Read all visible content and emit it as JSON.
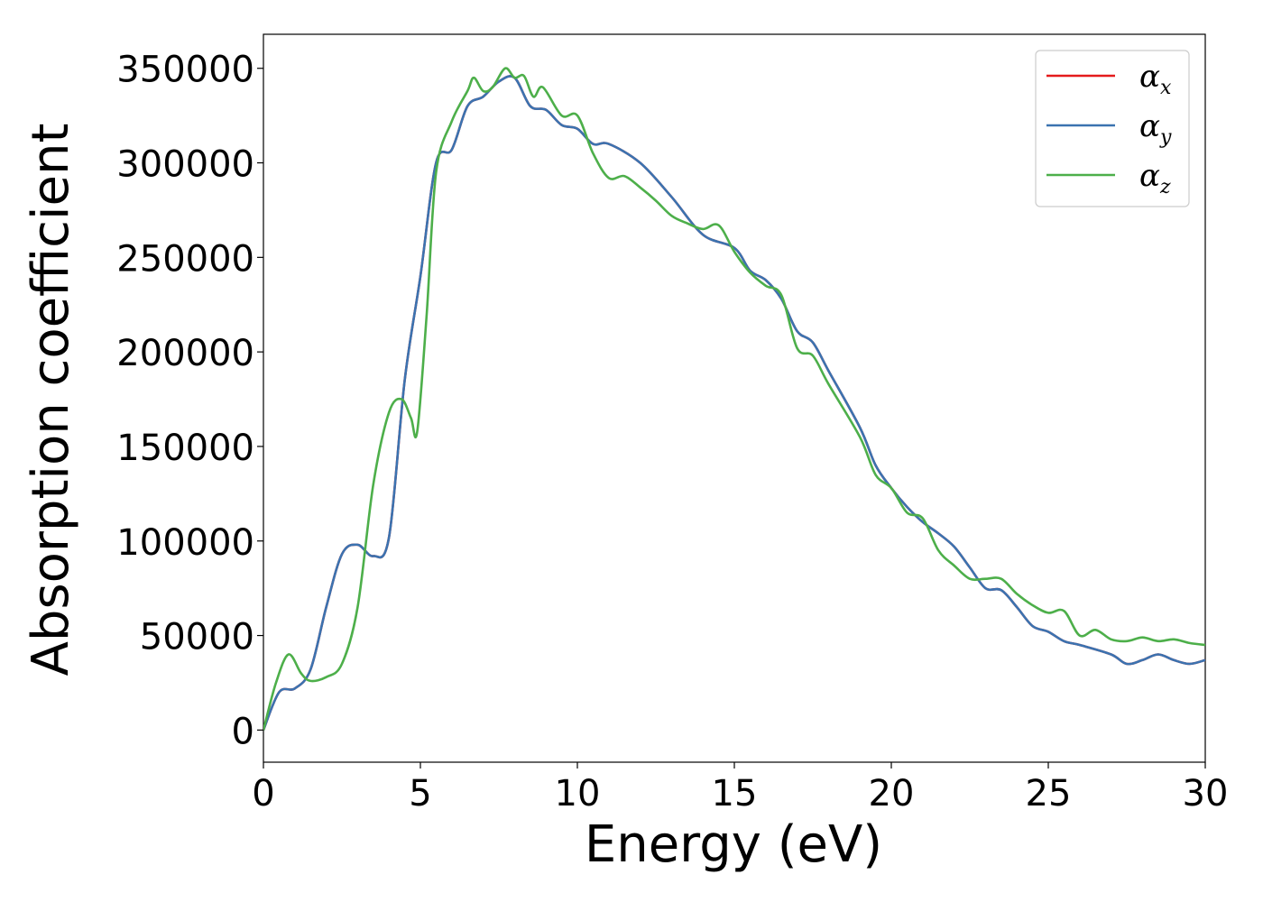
{
  "chart_data": {
    "type": "line",
    "xlabel": "Energy (eV)",
    "ylabel": "Absorption coefficient",
    "xlim": [
      0,
      30
    ],
    "ylim": [
      -17000,
      368000
    ],
    "xticks": [
      0,
      5,
      10,
      15,
      20,
      25,
      30
    ],
    "yticks": [
      0,
      50000,
      100000,
      150000,
      200000,
      250000,
      300000,
      350000
    ],
    "grid": false,
    "legend_position": "top-right",
    "series": [
      {
        "name": "α_x",
        "legend_symbol": "α",
        "legend_sub": "x",
        "color": "#e41a1c",
        "points": [
          [
            0,
            0
          ],
          [
            0.5,
            20000
          ],
          [
            1,
            22000
          ],
          [
            1.5,
            32000
          ],
          [
            2,
            65000
          ],
          [
            2.5,
            93000
          ],
          [
            3,
            98000
          ],
          [
            3.5,
            92000
          ],
          [
            4,
            102000
          ],
          [
            4.5,
            185000
          ],
          [
            5,
            240000
          ],
          [
            5.5,
            300000
          ],
          [
            6,
            307000
          ],
          [
            6.5,
            330000
          ],
          [
            7,
            335000
          ],
          [
            7.5,
            343000
          ],
          [
            8,
            345000
          ],
          [
            8.5,
            330000
          ],
          [
            9,
            328000
          ],
          [
            9.5,
            320000
          ],
          [
            10,
            318000
          ],
          [
            10.5,
            310000
          ],
          [
            11,
            310000
          ],
          [
            12,
            300000
          ],
          [
            13,
            282000
          ],
          [
            14,
            262000
          ],
          [
            15,
            255000
          ],
          [
            15.5,
            243000
          ],
          [
            16,
            238000
          ],
          [
            16.5,
            228000
          ],
          [
            17,
            211000
          ],
          [
            17.5,
            205000
          ],
          [
            18,
            190000
          ],
          [
            19,
            160000
          ],
          [
            19.5,
            140000
          ],
          [
            20,
            128000
          ],
          [
            20.5,
            118000
          ],
          [
            21,
            110000
          ],
          [
            21.5,
            104000
          ],
          [
            22,
            97000
          ],
          [
            22.5,
            86000
          ],
          [
            23,
            75000
          ],
          [
            23.5,
            74000
          ],
          [
            24,
            65000
          ],
          [
            24.5,
            55000
          ],
          [
            25,
            52000
          ],
          [
            25.5,
            47000
          ],
          [
            26,
            45000
          ],
          [
            27,
            40000
          ],
          [
            27.5,
            35000
          ],
          [
            28,
            37000
          ],
          [
            28.5,
            40000
          ],
          [
            29,
            37000
          ],
          [
            29.5,
            35000
          ],
          [
            30,
            37000
          ]
        ]
      },
      {
        "name": "α_y",
        "legend_symbol": "α",
        "legend_sub": "y",
        "color": "#3b73b0",
        "points": [
          [
            0,
            0
          ],
          [
            0.5,
            20000
          ],
          [
            1,
            22000
          ],
          [
            1.5,
            32000
          ],
          [
            2,
            65000
          ],
          [
            2.5,
            93000
          ],
          [
            3,
            98000
          ],
          [
            3.5,
            92000
          ],
          [
            4,
            102000
          ],
          [
            4.5,
            185000
          ],
          [
            5,
            240000
          ],
          [
            5.5,
            300000
          ],
          [
            6,
            307000
          ],
          [
            6.5,
            330000
          ],
          [
            7,
            335000
          ],
          [
            7.5,
            343000
          ],
          [
            8,
            345000
          ],
          [
            8.5,
            330000
          ],
          [
            9,
            328000
          ],
          [
            9.5,
            320000
          ],
          [
            10,
            318000
          ],
          [
            10.5,
            310000
          ],
          [
            11,
            310000
          ],
          [
            12,
            300000
          ],
          [
            13,
            282000
          ],
          [
            14,
            262000
          ],
          [
            15,
            255000
          ],
          [
            15.5,
            243000
          ],
          [
            16,
            238000
          ],
          [
            16.5,
            228000
          ],
          [
            17,
            211000
          ],
          [
            17.5,
            205000
          ],
          [
            18,
            190000
          ],
          [
            19,
            160000
          ],
          [
            19.5,
            140000
          ],
          [
            20,
            128000
          ],
          [
            20.5,
            118000
          ],
          [
            21,
            110000
          ],
          [
            21.5,
            104000
          ],
          [
            22,
            97000
          ],
          [
            22.5,
            86000
          ],
          [
            23,
            75000
          ],
          [
            23.5,
            74000
          ],
          [
            24,
            65000
          ],
          [
            24.5,
            55000
          ],
          [
            25,
            52000
          ],
          [
            25.5,
            47000
          ],
          [
            26,
            45000
          ],
          [
            27,
            40000
          ],
          [
            27.5,
            35000
          ],
          [
            28,
            37000
          ],
          [
            28.5,
            40000
          ],
          [
            29,
            37000
          ],
          [
            29.5,
            35000
          ],
          [
            30,
            37000
          ]
        ]
      },
      {
        "name": "α_z",
        "legend_symbol": "α",
        "legend_sub": "z",
        "color": "#4daf4a",
        "points": [
          [
            0,
            0
          ],
          [
            0.4,
            25000
          ],
          [
            0.8,
            40000
          ],
          [
            1.2,
            30000
          ],
          [
            1.5,
            26000
          ],
          [
            2,
            28000
          ],
          [
            2.5,
            35000
          ],
          [
            3,
            65000
          ],
          [
            3.5,
            130000
          ],
          [
            4,
            168000
          ],
          [
            4.4,
            175000
          ],
          [
            4.7,
            165000
          ],
          [
            4.9,
            158000
          ],
          [
            5.2,
            220000
          ],
          [
            5.5,
            295000
          ],
          [
            6,
            322000
          ],
          [
            6.5,
            338000
          ],
          [
            6.7,
            345000
          ],
          [
            7,
            338000
          ],
          [
            7.3,
            340000
          ],
          [
            7.7,
            350000
          ],
          [
            8,
            345000
          ],
          [
            8.3,
            346000
          ],
          [
            8.6,
            335000
          ],
          [
            8.9,
            340000
          ],
          [
            9.5,
            325000
          ],
          [
            10,
            325000
          ],
          [
            10.5,
            305000
          ],
          [
            11,
            292000
          ],
          [
            11.5,
            293000
          ],
          [
            12,
            287000
          ],
          [
            12.5,
            280000
          ],
          [
            13,
            272000
          ],
          [
            13.5,
            268000
          ],
          [
            14,
            265000
          ],
          [
            14.5,
            267000
          ],
          [
            15,
            253000
          ],
          [
            15.5,
            242000
          ],
          [
            16,
            235000
          ],
          [
            16.5,
            230000
          ],
          [
            17,
            202000
          ],
          [
            17.5,
            198000
          ],
          [
            18,
            183000
          ],
          [
            19,
            155000
          ],
          [
            19.5,
            135000
          ],
          [
            20,
            128000
          ],
          [
            20.5,
            115000
          ],
          [
            21,
            112000
          ],
          [
            21.5,
            95000
          ],
          [
            22,
            87000
          ],
          [
            22.5,
            80000
          ],
          [
            23,
            80000
          ],
          [
            23.5,
            80000
          ],
          [
            24,
            72000
          ],
          [
            24.5,
            66000
          ],
          [
            25,
            62000
          ],
          [
            25.5,
            63000
          ],
          [
            26,
            50000
          ],
          [
            26.5,
            53000
          ],
          [
            27,
            48000
          ],
          [
            27.5,
            47000
          ],
          [
            28,
            49000
          ],
          [
            28.5,
            47000
          ],
          [
            29,
            48000
          ],
          [
            29.5,
            46000
          ],
          [
            30,
            45000
          ]
        ]
      }
    ]
  }
}
